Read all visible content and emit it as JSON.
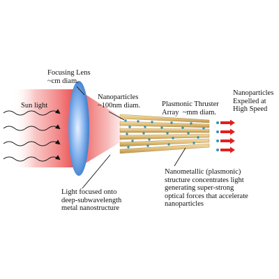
{
  "labels": {
    "sunlight": "Sun light",
    "lens": "Focusing Lens\n~cm diam.",
    "nanoparticles": "Nanoparticles\n~100nm diam.",
    "thruster": "Plasmonic Thruster\nArray  ~mm diam.",
    "expelled": "Nanoparticles\nExpelled at\nHigh Speed",
    "focused": "Light focused onto\ndeep-subwavelength\nmetal nanostructure",
    "nanometallic": "Nanometallic (plasmonic)\nstructure concentrates light\ngenerating super-strong\noptical forces that accelerate\nnanoparticles"
  },
  "colors": {
    "light_beam": "#e8282a",
    "lens_blue": "#3f86d8",
    "thruster_gold": "#e2c07a",
    "particle": "#2e93b8",
    "arrow_red": "#e0201e",
    "text": "#111111"
  },
  "icons": {
    "sun_rays": "wavy-arrow",
    "expelled_particles": "red-arrow"
  }
}
